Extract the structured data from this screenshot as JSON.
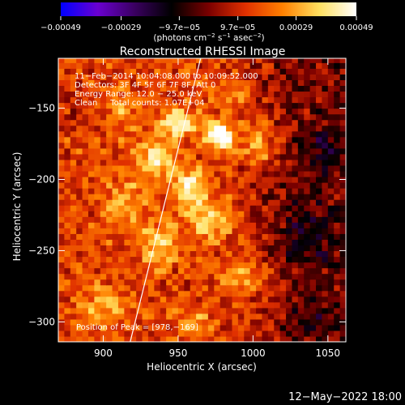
{
  "chart_data": {
    "type": "heatmap",
    "title": "Reconstructed RHESSI Image",
    "xlabel": "Heliocentric X (arcsec)",
    "ylabel": "Heliocentric Y (arcsec)",
    "xlim": [
      870,
      1062
    ],
    "ylim": [
      -314,
      -115
    ],
    "x_ticks": [
      900,
      950,
      1000,
      1050
    ],
    "y_ticks": [
      -150,
      -200,
      -250,
      -300
    ],
    "x_tick_labels": [
      "900",
      "950",
      "1000",
      "1050"
    ],
    "y_tick_labels": [
      "−150",
      "−200",
      "−250",
      "−300"
    ],
    "colorbar": {
      "range": [
        -0.00049,
        0.00049
      ],
      "ticks": [
        -0.00049,
        -0.00029,
        -9.7e-05,
        9.7e-05,
        0.00029,
        0.00049
      ],
      "tick_labels": [
        "−0.00049",
        "−0.00029",
        "−9.7e−05",
        "9.7e−05",
        "0.00029",
        "0.00049"
      ],
      "unit_prefix": "(photons cm",
      "unit_exp1": "−2",
      "unit_mid1": " s",
      "unit_exp2": "−1",
      "unit_mid2": " asec",
      "unit_exp3": "−2",
      "unit_suffix": ")"
    },
    "annotations": [
      "11−Feb−2014 10:04:08.000 to 10:09:52.000",
      "Detectors: 3F 4F 5F 6F 7F 8F, Att 0",
      "Energy Range: 12.0 − 25.0 keV",
      "Clean     Total counts: 1.07E+04"
    ],
    "peak_label": "Position of Peak = [978,−169]",
    "peak": {
      "x": 978,
      "y": -169
    },
    "limb_line": [
      [
        918,
        -314
      ],
      [
        965,
        -115
      ]
    ],
    "emission_blobs": [
      {
        "x": 978,
        "y": -169,
        "sx": 6,
        "sy": 7,
        "a": 1.0
      },
      {
        "x": 950,
        "y": -160,
        "sx": 9,
        "sy": 7,
        "a": 0.62
      },
      {
        "x": 935,
        "y": -185,
        "sx": 9,
        "sy": 9,
        "a": 0.55
      },
      {
        "x": 958,
        "y": -205,
        "sx": 8,
        "sy": 9,
        "a": 0.62
      },
      {
        "x": 915,
        "y": -218,
        "sx": 9,
        "sy": 12,
        "a": 0.35
      },
      {
        "x": 938,
        "y": -245,
        "sx": 9,
        "sy": 10,
        "a": 0.48
      },
      {
        "x": 972,
        "y": -228,
        "sx": 10,
        "sy": 10,
        "a": 0.45
      },
      {
        "x": 1005,
        "y": -175,
        "sx": 10,
        "sy": 12,
        "a": 0.4
      },
      {
        "x": 995,
        "y": -268,
        "sx": 10,
        "sy": 10,
        "a": 0.38
      },
      {
        "x": 900,
        "y": -288,
        "sx": 10,
        "sy": 10,
        "a": 0.35
      },
      {
        "x": 960,
        "y": -298,
        "sx": 10,
        "sy": 8,
        "a": 0.22
      },
      {
        "x": 912,
        "y": -150,
        "sx": 8,
        "sy": 10,
        "a": 0.28
      },
      {
        "x": 985,
        "y": -140,
        "sx": 9,
        "sy": 8,
        "a": 0.25
      },
      {
        "x": 1035,
        "y": -240,
        "sx": 12,
        "sy": 14,
        "a": -0.3
      },
      {
        "x": 1048,
        "y": -180,
        "sx": 10,
        "sy": 12,
        "a": -0.25
      },
      {
        "x": 880,
        "y": -150,
        "sx": 8,
        "sy": 10,
        "a": -0.15
      },
      {
        "x": 1040,
        "y": -300,
        "sx": 10,
        "sy": 8,
        "a": -0.2
      }
    ],
    "grid": false,
    "colormap": [
      "#0000ff",
      "#6a00d0",
      "#3a0060",
      "#000000",
      "#7a0000",
      "#e03000",
      "#ff8000",
      "#ffe060",
      "#ffffff"
    ]
  },
  "footer": {
    "date": "12−May−2022 18:00"
  }
}
